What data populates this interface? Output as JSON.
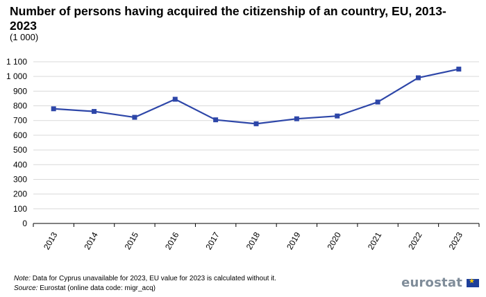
{
  "title": "Number of persons having acquired the citizenship of an country, EU, 2013-2023",
  "subtitle": "(1 000)",
  "footer": {
    "note_label": "Note:",
    "note_text": "Data for Cyprus unavailable  for 2023, EU value for 2023 is calculated without it.",
    "source_label": "Source:",
    "source_text": "Eurostat (online data code: migr_acq)"
  },
  "logo": {
    "text": "eurostat",
    "flag_icon": "eu-flag-icon"
  },
  "chart_data": {
    "type": "line",
    "title": "Number of persons having acquired the citizenship of an country, EU, 2013-2023",
    "subtitle": "(1 000)",
    "xlabel": "",
    "ylabel": "",
    "categories": [
      "2013",
      "2014",
      "2015",
      "2016",
      "2017",
      "2018",
      "2019",
      "2020",
      "2021",
      "2022",
      "2023"
    ],
    "series": [
      {
        "values": [
          780,
          762,
          722,
          845,
          705,
          678,
          712,
          731,
          826,
          991,
          1050
        ],
        "color": "#2d46a8"
      }
    ],
    "ylim": [
      0,
      1100
    ],
    "yticks": [
      0,
      100,
      200,
      300,
      400,
      500,
      600,
      700,
      800,
      900,
      1000,
      1100
    ],
    "ytick_labels": [
      "0",
      "100",
      "200",
      "300",
      "400",
      "500",
      "600",
      "700",
      "800",
      "900",
      "1 000",
      "1 100"
    ],
    "grid": true,
    "legend": "none"
  }
}
